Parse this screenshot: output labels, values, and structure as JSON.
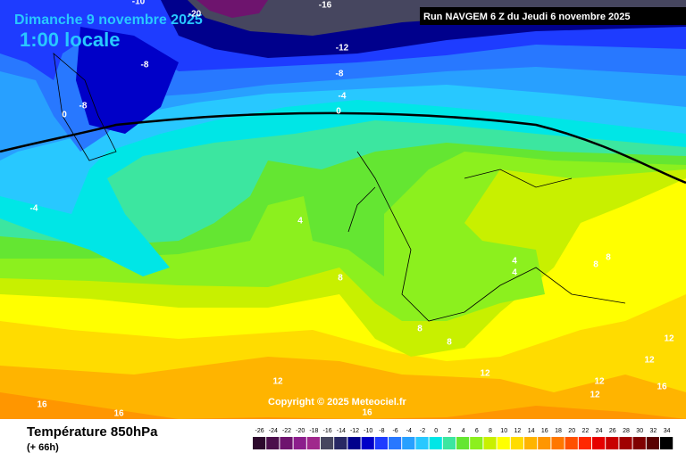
{
  "header": {
    "title": "Dimanche 9 novembre 2025",
    "time": "1:00 locale",
    "run": "Run NAVGEM 6 Z du Jeudi 6 novembre 2025"
  },
  "copyright": "Copyright © 2025 Meteociel.fr",
  "footer": {
    "variable": "Température 850hPa",
    "lead": "(+ 66h)"
  },
  "colorbar": {
    "values": [
      -26,
      -24,
      -22,
      -20,
      -18,
      -16,
      -14,
      -12,
      -10,
      -8,
      -6,
      -4,
      -2,
      0,
      2,
      4,
      6,
      8,
      10,
      12,
      14,
      16,
      18,
      20,
      22,
      24,
      26,
      28,
      30,
      32,
      34
    ],
    "colors": [
      "#2d0a2d",
      "#4b0f4b",
      "#6e146e",
      "#8c1e8c",
      "#a0288c",
      "#46465f",
      "#282864",
      "#00008c",
      "#0000c8",
      "#1e3cff",
      "#2878ff",
      "#28a0ff",
      "#28c8ff",
      "#00e6e6",
      "#3ce6a0",
      "#64e632",
      "#8cf01e",
      "#c8f000",
      "#ffff00",
      "#ffdc00",
      "#ffb400",
      "#ff9600",
      "#ff7800",
      "#ff5000",
      "#ff2800",
      "#e60000",
      "#c80000",
      "#a00000",
      "#800000",
      "#5a0000",
      "#000000"
    ]
  },
  "contour_labels": [
    -10,
    -20,
    -16,
    -12,
    -8,
    -8,
    -4,
    0,
    0,
    -8,
    -4,
    4,
    8,
    4,
    4,
    8,
    8,
    8,
    8,
    12,
    12,
    12,
    12,
    12,
    16,
    12,
    16,
    16,
    16
  ]
}
